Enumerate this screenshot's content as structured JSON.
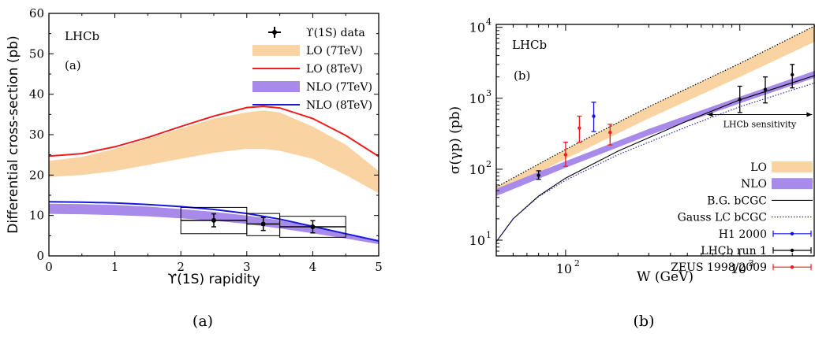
{
  "chart_data": [
    {
      "type": "line",
      "caption": "(a)",
      "experiment_label": "LHCb",
      "panel_label": "(a)",
      "xlabel": "ϒ(1S) rapidity",
      "ylabel": "Differential cross-section (pb)",
      "xlim": [
        0,
        5
      ],
      "ylim": [
        0,
        60
      ],
      "xticks": [
        0,
        1,
        2,
        3,
        4,
        5
      ],
      "yticks": [
        0,
        10,
        20,
        30,
        40,
        50,
        60
      ],
      "legend_position": "top-right",
      "series": [
        {
          "name": "LO (7TeV)",
          "kind": "band",
          "color": "#f9d4a2",
          "x": [
            0,
            0.5,
            1,
            1.5,
            2,
            2.5,
            3,
            3.25,
            3.5,
            4,
            4.5,
            5
          ],
          "low": [
            19.5,
            20,
            21,
            22.5,
            24,
            25.5,
            26.5,
            26.5,
            26,
            24,
            20,
            15.5
          ],
          "high": [
            23.5,
            24.5,
            26.5,
            29,
            31.5,
            34,
            35.5,
            36,
            35.5,
            32,
            27.5,
            21
          ]
        },
        {
          "name": "LO (8TeV)",
          "kind": "line",
          "color": "#ee1c1c",
          "x": [
            0,
            0.5,
            1,
            1.5,
            2,
            2.5,
            3,
            3.25,
            3.5,
            4,
            4.5,
            5
          ],
          "y": [
            24.7,
            25.3,
            27,
            29.3,
            32,
            34.6,
            36.7,
            37,
            36.6,
            34,
            29.8,
            24.6
          ]
        },
        {
          "name": "NLO (7TeV)",
          "kind": "band",
          "color": "#a78ae9",
          "x": [
            0,
            0.5,
            1,
            1.5,
            2,
            2.5,
            3,
            3.5,
            4,
            4.5,
            5
          ],
          "low": [
            10.4,
            10.3,
            10.1,
            9.8,
            9.3,
            8.7,
            7.9,
            6.8,
            5.6,
            4.3,
            2.9
          ],
          "high": [
            12.9,
            12.8,
            12.6,
            12.2,
            11.6,
            10.9,
            10,
            8.8,
            7.2,
            5.5,
            3.9
          ]
        },
        {
          "name": "NLO (8TeV)",
          "kind": "line",
          "color": "#1717dd",
          "x": [
            0,
            0.5,
            1,
            1.5,
            2,
            2.5,
            3,
            3.5,
            4,
            4.5,
            5
          ],
          "y": [
            13.4,
            13.3,
            13.1,
            12.7,
            12.2,
            11.5,
            10.5,
            9.1,
            7.3,
            5.5,
            3.7
          ]
        },
        {
          "name": "ϒ(1S) data",
          "kind": "points",
          "color": "#000000",
          "x": [
            2.5,
            3.25,
            4.0
          ],
          "y": [
            8.8,
            7.9,
            7.2
          ],
          "yerr": [
            1.6,
            1.6,
            1.5
          ],
          "xerr": [
            0.5,
            0.25,
            0.5
          ],
          "sys_low": [
            5.5,
            5.0,
            4.6
          ],
          "sys_high": [
            12.0,
            10.5,
            9.8
          ]
        }
      ]
    },
    {
      "type": "line",
      "caption": "(b)",
      "experiment_label": "LHCb",
      "panel_label": "(b)",
      "xlabel": "W (GeV)",
      "ylabel": "σ(γp) (pb)",
      "xscale": "log",
      "yscale": "log",
      "xlim": [
        40,
        2700
      ],
      "ylim": [
        6,
        11000
      ],
      "xticks": [
        100,
        1000
      ],
      "xtick_labels": [
        "10",
        "10"
      ],
      "xtick_exps": [
        "2",
        "3"
      ],
      "yticks": [
        10,
        100,
        1000,
        10000
      ],
      "ytick_labels": [
        "10",
        "10",
        "10",
        "10"
      ],
      "ytick_exps": [
        "1",
        "2",
        "3",
        "4"
      ],
      "legend_position": "bottom-right",
      "annotation": "LHCb sensitivity",
      "annotation_range": [
        650,
        2600
      ],
      "annotation_y": 590,
      "series": [
        {
          "name": "LO",
          "kind": "band",
          "color": "#f9d4a2",
          "x": [
            40,
            100,
            300,
            1000,
            2700
          ],
          "low": [
            44,
            140,
            520,
            2000,
            6300
          ],
          "high": [
            56,
            190,
            760,
            3100,
            10500
          ]
        },
        {
          "name": "LO-upper-edge",
          "kind": "dotted",
          "color": "#000000",
          "x": [
            40,
            100,
            300,
            1000,
            2700
          ],
          "y": [
            56,
            190,
            760,
            3100,
            10500
          ]
        },
        {
          "name": "NLO",
          "kind": "band",
          "color": "#a78ae9",
          "x": [
            40,
            100,
            300,
            1000,
            2700
          ],
          "low": [
            42,
            105,
            300,
            850,
            1950
          ],
          "high": [
            53,
            130,
            370,
            1050,
            2450
          ]
        },
        {
          "name": "B.G. bCGC",
          "kind": "line",
          "color": "#000000",
          "x": [
            40,
            50,
            70,
            100,
            200,
            500,
            1000,
            2700
          ],
          "y": [
            9.5,
            20,
            42,
            75,
            180,
            480,
            950,
            2100
          ]
        },
        {
          "name": "Gauss LC bCGC",
          "kind": "dotted",
          "color": "#1717aa",
          "x": [
            40,
            50,
            70,
            100,
            200,
            500,
            1000,
            2700
          ],
          "y": [
            9.5,
            20,
            41,
            70,
            160,
            400,
            760,
            1650
          ]
        },
        {
          "name": "H1 2000",
          "kind": "points",
          "color": "#1010dd",
          "x": [
            145
          ],
          "y": [
            560
          ],
          "ylow": [
            340
          ],
          "yhigh": [
            880
          ]
        },
        {
          "name": "LHCb run 1",
          "kind": "points",
          "color": "#000000",
          "x": [
            70,
            1000,
            1400,
            2000
          ],
          "y": [
            82,
            960,
            1330,
            2150
          ],
          "ylow": [
            72,
            630,
            860,
            1400
          ],
          "yhigh": [
            95,
            1480,
            2000,
            3000
          ]
        },
        {
          "name": "ZEUS 1998/2009",
          "kind": "points",
          "color": "#ee1c1c",
          "x": [
            100,
            120,
            180
          ],
          "y": [
            160,
            380,
            330
          ],
          "ylow": [
            110,
            240,
            220
          ],
          "yhigh": [
            240,
            560,
            430
          ]
        }
      ]
    }
  ]
}
